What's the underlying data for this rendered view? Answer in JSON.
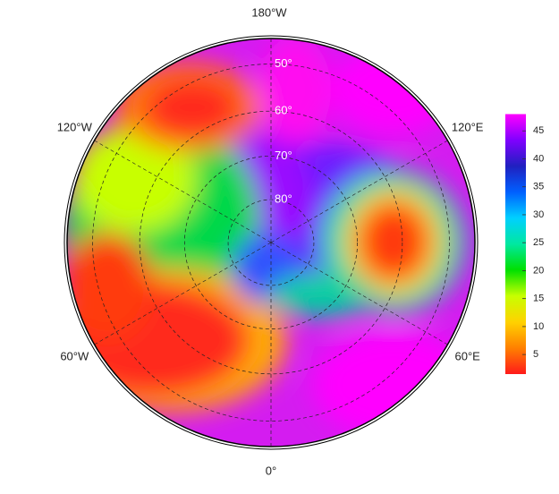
{
  "map": {
    "lon_labels": [
      {
        "value": 180,
        "label": "180°W"
      },
      {
        "value": -120,
        "label": "120°W"
      },
      {
        "value": 120,
        "label": "120°E"
      },
      {
        "value": -60,
        "label": "60°W"
      },
      {
        "value": 60,
        "label": "60°E"
      },
      {
        "value": 0,
        "label": "0°"
      }
    ],
    "lat_labels": [
      {
        "value": 50,
        "label": "50°"
      },
      {
        "value": 60,
        "label": "60°"
      },
      {
        "value": 70,
        "label": "70°"
      },
      {
        "value": 80,
        "label": "80°"
      }
    ]
  },
  "colorbar": {
    "clim": [
      1.5,
      48
    ],
    "ticks": [
      5,
      10,
      15,
      20,
      25,
      30,
      35,
      40,
      45
    ],
    "colors": [
      "#ff1a1a",
      "#ff8000",
      "#ffd200",
      "#c8ff00",
      "#00e000",
      "#00e8a0",
      "#00d0ff",
      "#0060ff",
      "#2020c0",
      "#8000ff",
      "#ff00ff"
    ]
  }
}
